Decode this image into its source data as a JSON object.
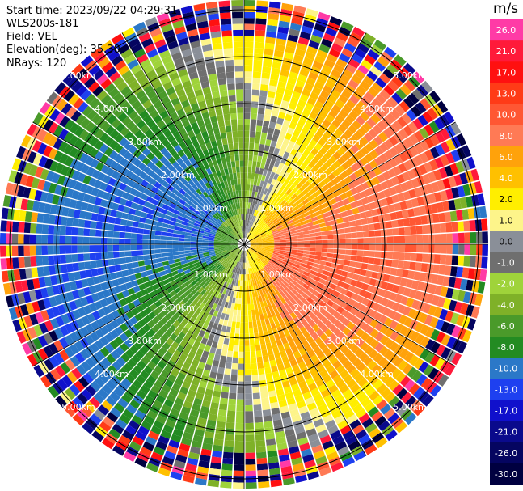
{
  "header": {
    "start_time": "Start time: 2023/09/22 04:29:31",
    "instrument": "WLS200s-181",
    "field": "Field: VEL",
    "elevation": "Elevation(deg): 35.30",
    "nrays": "NRays: 120"
  },
  "chart_data": {
    "type": "heatmap",
    "projection": "polar-ppi",
    "field": "VEL",
    "units": "m/s",
    "nrays": 120,
    "elevation_deg": 35.3,
    "range_rings_km": [
      1,
      2,
      3,
      4,
      5
    ],
    "ring_labels": [
      "1.00km",
      "2.00km",
      "3.00km",
      "4.00km",
      "5.00km"
    ],
    "colorbar": {
      "ticks": [
        "26.0",
        "21.0",
        "17.0",
        "13.0",
        "10.0",
        "8.0",
        "6.0",
        "4.0",
        "2.0",
        "1.0",
        "0.0",
        "-1.0",
        "-2.0",
        "-4.0",
        "-6.0",
        "-8.0",
        "-10.0",
        "-13.0",
        "-17.0",
        "-21.0",
        "-26.0",
        "-30.0"
      ],
      "bins": [
        {
          "min": 26,
          "color": "#ff3ba6"
        },
        {
          "min": 21,
          "color": "#ff1a3a"
        },
        {
          "min": 17,
          "color": "#ff1010"
        },
        {
          "min": 13,
          "color": "#ff3b17"
        },
        {
          "min": 10,
          "color": "#ff5733"
        },
        {
          "min": 8,
          "color": "#ff7a55"
        },
        {
          "min": 6,
          "color": "#ffa20b"
        },
        {
          "min": 4,
          "color": "#ffc000"
        },
        {
          "min": 2,
          "color": "#ffee00"
        },
        {
          "min": 1,
          "color": "#fdf48a"
        },
        {
          "min": 0,
          "color": "#8a8f98"
        },
        {
          "min": -1,
          "color": "#6f6f6f"
        },
        {
          "min": -2,
          "color": "#9fd33a"
        },
        {
          "min": -4,
          "color": "#7fb128"
        },
        {
          "min": -6,
          "color": "#4a9a2a"
        },
        {
          "min": -8,
          "color": "#238b22"
        },
        {
          "min": -10,
          "color": "#2b78c8"
        },
        {
          "min": -13,
          "color": "#1e40f0"
        },
        {
          "min": -17,
          "color": "#1010cc"
        },
        {
          "min": -21,
          "color": "#0a0a8c"
        },
        {
          "min": -26,
          "color": "#050560"
        },
        {
          "min": -30,
          "color": "#000040"
        }
      ]
    },
    "velocity_pattern": {
      "peak_m_s": 10,
      "max_direction": "east",
      "min_direction": "west",
      "noise_beyond_km": 4.4
    }
  }
}
